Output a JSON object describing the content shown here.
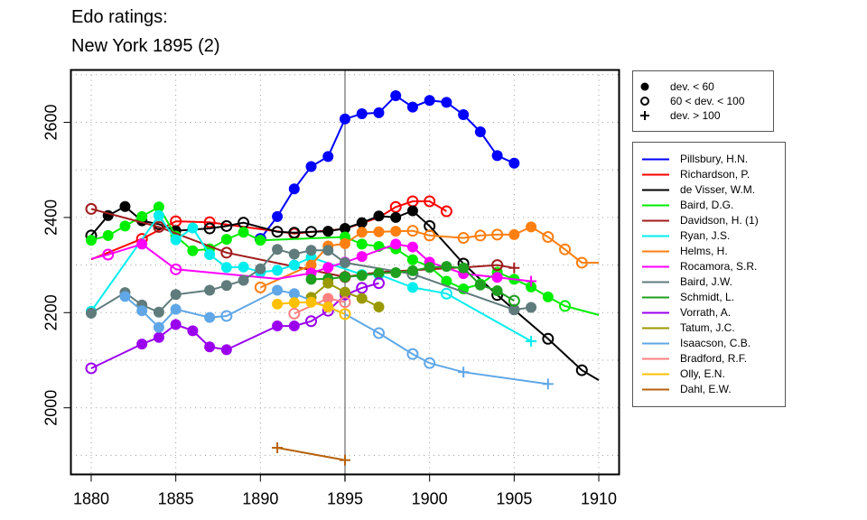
{
  "chart_data": {
    "type": "line",
    "title": "Edo ratings:",
    "subtitle": "New York 1895 (2)",
    "xlabel": "",
    "ylabel": "",
    "xlim": [
      1878.8,
      1911.2
    ],
    "ylim": [
      1860,
      2710
    ],
    "x_ticks": [
      1880,
      1885,
      1890,
      1895,
      1900,
      1905,
      1910
    ],
    "y_ticks": [
      2000,
      2200,
      2400,
      2600
    ],
    "grid": true,
    "event_year": 1895,
    "legend_position": "right",
    "marker_legend": [
      {
        "marker": "filled",
        "label": "dev. < 60"
      },
      {
        "marker": "open",
        "label": "60 < dev. < 100"
      },
      {
        "marker": "plus",
        "label": "dev. > 100"
      }
    ],
    "series": [
      {
        "name": "Pillsbury, H.N.",
        "color": "#0000ff",
        "points": [
          [
            1890,
            2355,
            "o"
          ],
          [
            1891,
            2402,
            "f"
          ],
          [
            1892,
            2460,
            "f"
          ],
          [
            1893,
            2507,
            "f"
          ],
          [
            1894,
            2528,
            "f"
          ],
          [
            1895,
            2607,
            "f"
          ],
          [
            1896,
            2618,
            "f"
          ],
          [
            1897,
            2620,
            "f"
          ],
          [
            1898,
            2656,
            "f"
          ],
          [
            1899,
            2632,
            "f"
          ],
          [
            1900,
            2646,
            "f"
          ],
          [
            1901,
            2642,
            "f"
          ],
          [
            1902,
            2616,
            "f"
          ],
          [
            1903,
            2580,
            "f"
          ],
          [
            1904,
            2530,
            "f"
          ],
          [
            1905,
            2514,
            "f"
          ]
        ]
      },
      {
        "name": "Richardson, P.",
        "color": "#ff0000",
        "points": [
          [
            1880,
            2312,
            "n"
          ],
          [
            1883,
            2355,
            "o"
          ],
          [
            1885,
            2392,
            "o"
          ],
          [
            1887,
            2390,
            "o"
          ],
          [
            1892,
            2366,
            "o"
          ],
          [
            1895,
            2376,
            "n"
          ],
          [
            1897,
            2400,
            "n"
          ],
          [
            1898,
            2422,
            "o"
          ],
          [
            1899,
            2434,
            "o"
          ],
          [
            1900,
            2434,
            "o"
          ],
          [
            1901,
            2413,
            "o"
          ]
        ]
      },
      {
        "name": "de Visser, W.M.",
        "color": "#000000",
        "points": [
          [
            1880,
            2362,
            "o"
          ],
          [
            1881,
            2404,
            "f"
          ],
          [
            1882,
            2423,
            "f"
          ],
          [
            1883,
            2393,
            "f"
          ],
          [
            1884,
            2386,
            "o"
          ],
          [
            1885,
            2372,
            "f"
          ],
          [
            1887,
            2377,
            "o"
          ],
          [
            1888,
            2382,
            "o"
          ],
          [
            1889,
            2389,
            "o"
          ],
          [
            1891,
            2370,
            "o"
          ],
          [
            1892,
            2368,
            "o"
          ],
          [
            1893,
            2370,
            "o"
          ],
          [
            1894,
            2371,
            "f"
          ],
          [
            1895,
            2377,
            "f"
          ],
          [
            1896,
            2389,
            "f"
          ],
          [
            1897,
            2403,
            "f"
          ],
          [
            1898,
            2400,
            "f"
          ],
          [
            1899,
            2414,
            "f"
          ],
          [
            1900,
            2382,
            "o"
          ],
          [
            1902,
            2303,
            "o"
          ],
          [
            1904,
            2237,
            "o"
          ],
          [
            1905,
            2206,
            "f"
          ],
          [
            1907,
            2145,
            "o"
          ],
          [
            1909,
            2079,
            "o"
          ],
          [
            1910,
            2058,
            "n"
          ]
        ]
      },
      {
        "name": "Baird, D.G.",
        "color": "#00ee00",
        "points": [
          [
            1880,
            2352,
            "f"
          ],
          [
            1881,
            2362,
            "f"
          ],
          [
            1882,
            2382,
            "f"
          ],
          [
            1883,
            2402,
            "f"
          ],
          [
            1884,
            2422,
            "f"
          ],
          [
            1885,
            2361,
            "f"
          ],
          [
            1886,
            2330,
            "f"
          ],
          [
            1887,
            2334,
            "f"
          ],
          [
            1888,
            2354,
            "f"
          ],
          [
            1889,
            2369,
            "f"
          ],
          [
            1890,
            2352,
            "f"
          ],
          [
            1895,
            2359,
            "f"
          ],
          [
            1896,
            2344,
            "f"
          ],
          [
            1897,
            2339,
            "f"
          ],
          [
            1898,
            2334,
            "f"
          ],
          [
            1899,
            2311,
            "f"
          ],
          [
            1900,
            2297,
            "f"
          ],
          [
            1901,
            2266,
            "f"
          ],
          [
            1902,
            2250,
            "f"
          ],
          [
            1903,
            2260,
            "f"
          ],
          [
            1904,
            2285,
            "f"
          ],
          [
            1905,
            2270,
            "f"
          ],
          [
            1906,
            2254,
            "f"
          ],
          [
            1907,
            2233,
            "f"
          ],
          [
            1908,
            2214,
            "o"
          ],
          [
            1910,
            2195,
            "n"
          ]
        ]
      },
      {
        "name": "Davidson, H. (1)",
        "color": "#a01c1c",
        "points": [
          [
            1880,
            2418,
            "o"
          ],
          [
            1884,
            2380,
            "o"
          ],
          [
            1888,
            2326,
            "o"
          ],
          [
            1895,
            2275,
            "o"
          ],
          [
            1897,
            2285,
            "n"
          ],
          [
            1902,
            2295,
            "n"
          ],
          [
            1904,
            2300,
            "o"
          ],
          [
            1905,
            2294,
            "p"
          ]
        ]
      },
      {
        "name": "Ryan, J.S.",
        "color": "#00eeee",
        "points": [
          [
            1880,
            2203,
            "f"
          ],
          [
            1884,
            2404,
            "f"
          ],
          [
            1885,
            2353,
            "f"
          ],
          [
            1886,
            2378,
            "f"
          ],
          [
            1887,
            2322,
            "f"
          ],
          [
            1888,
            2295,
            "f"
          ],
          [
            1889,
            2296,
            "f"
          ],
          [
            1890,
            2285,
            "f"
          ],
          [
            1891,
            2289,
            "f"
          ],
          [
            1892,
            2300,
            "f"
          ],
          [
            1893,
            2316,
            "f"
          ],
          [
            1896,
            2280,
            "f"
          ],
          [
            1897,
            2280,
            "f"
          ],
          [
            1899,
            2253,
            "f"
          ],
          [
            1901,
            2240,
            "o"
          ],
          [
            1906,
            2140,
            "p"
          ]
        ]
      },
      {
        "name": "Helms, H.",
        "color": "#ff7f11",
        "points": [
          [
            1890,
            2253,
            "o"
          ],
          [
            1893,
            2300,
            "f"
          ],
          [
            1894,
            2340,
            "f"
          ],
          [
            1895,
            2345,
            "f"
          ],
          [
            1896,
            2369,
            "f"
          ],
          [
            1897,
            2370,
            "f"
          ],
          [
            1898,
            2371,
            "f"
          ],
          [
            1899,
            2372,
            "o"
          ],
          [
            1900,
            2362,
            "o"
          ],
          [
            1902,
            2357,
            "o"
          ],
          [
            1903,
            2362,
            "o"
          ],
          [
            1904,
            2364,
            "o"
          ],
          [
            1905,
            2364,
            "f"
          ],
          [
            1906,
            2380,
            "f"
          ],
          [
            1907,
            2359,
            "o"
          ],
          [
            1908,
            2333,
            "o"
          ],
          [
            1909,
            2305,
            "o"
          ],
          [
            1910,
            2305,
            "n"
          ]
        ]
      },
      {
        "name": "Rocamora, S.R.",
        "color": "#ff00ff",
        "points": [
          [
            1880,
            2313,
            "n"
          ],
          [
            1881,
            2322,
            "o"
          ],
          [
            1883,
            2344,
            "f"
          ],
          [
            1885,
            2291,
            "o"
          ],
          [
            1891,
            2271,
            "n"
          ],
          [
            1893,
            2283,
            "f"
          ],
          [
            1894,
            2295,
            "f"
          ],
          [
            1895,
            2306,
            "f"
          ],
          [
            1896,
            2318,
            "f"
          ],
          [
            1898,
            2344,
            "f"
          ],
          [
            1899,
            2338,
            "f"
          ],
          [
            1900,
            2306,
            "f"
          ],
          [
            1902,
            2282,
            "f"
          ],
          [
            1904,
            2274,
            "f"
          ],
          [
            1906,
            2266,
            "p"
          ]
        ]
      },
      {
        "name": "Baird, J.W.",
        "color": "#607b7b",
        "points": [
          [
            1880,
            2199,
            "f"
          ],
          [
            1882,
            2242,
            "f"
          ],
          [
            1883,
            2216,
            "f"
          ],
          [
            1884,
            2201,
            "f"
          ],
          [
            1885,
            2238,
            "f"
          ],
          [
            1887,
            2247,
            "f"
          ],
          [
            1888,
            2257,
            "f"
          ],
          [
            1889,
            2268,
            "f"
          ],
          [
            1890,
            2292,
            "f"
          ],
          [
            1891,
            2333,
            "f"
          ],
          [
            1892,
            2323,
            "f"
          ],
          [
            1893,
            2331,
            "f"
          ],
          [
            1894,
            2331,
            "f"
          ],
          [
            1895,
            2305,
            "f"
          ],
          [
            1899,
            2281,
            "o"
          ],
          [
            1905,
            2206,
            "f"
          ],
          [
            1906,
            2211,
            "f"
          ]
        ]
      },
      {
        "name": "Schmidt, L.",
        "color": "#1ea01e",
        "points": [
          [
            1893,
            2270,
            "f"
          ],
          [
            1894,
            2271,
            "f"
          ],
          [
            1895,
            2275,
            "f"
          ],
          [
            1896,
            2278,
            "f"
          ],
          [
            1897,
            2283,
            "f"
          ],
          [
            1898,
            2284,
            "f"
          ],
          [
            1899,
            2288,
            "f"
          ],
          [
            1900,
            2295,
            "f"
          ],
          [
            1901,
            2297,
            "f"
          ],
          [
            1902,
            2294,
            "f"
          ],
          [
            1903,
            2258,
            "f"
          ],
          [
            1904,
            2246,
            "f"
          ],
          [
            1905,
            2225,
            "o"
          ]
        ]
      },
      {
        "name": "Vorrath, A.",
        "color": "#9b00ee",
        "points": [
          [
            1880,
            2083,
            "o"
          ],
          [
            1883,
            2134,
            "f"
          ],
          [
            1884,
            2148,
            "f"
          ],
          [
            1885,
            2175,
            "f"
          ],
          [
            1886,
            2162,
            "f"
          ],
          [
            1887,
            2128,
            "f"
          ],
          [
            1888,
            2122,
            "f"
          ],
          [
            1891,
            2172,
            "f"
          ],
          [
            1892,
            2172,
            "f"
          ],
          [
            1893,
            2182,
            "o"
          ],
          [
            1894,
            2204,
            "o"
          ],
          [
            1895,
            2237,
            "f"
          ],
          [
            1896,
            2252,
            "o"
          ],
          [
            1897,
            2262,
            "o"
          ]
        ]
      },
      {
        "name": "Tatum, J.C.",
        "color": "#999900",
        "points": [
          [
            1893,
            2232,
            "f"
          ],
          [
            1894,
            2262,
            "f"
          ],
          [
            1895,
            2243,
            "f"
          ],
          [
            1896,
            2230,
            "f"
          ],
          [
            1897,
            2212,
            "f"
          ]
        ]
      },
      {
        "name": "Isaacson, C.B.",
        "color": "#5fa7e7",
        "points": [
          [
            1882,
            2234,
            "f"
          ],
          [
            1883,
            2204,
            "f"
          ],
          [
            1884,
            2169,
            "f"
          ],
          [
            1885,
            2207,
            "f"
          ],
          [
            1887,
            2190,
            "f"
          ],
          [
            1888,
            2193,
            "o"
          ],
          [
            1891,
            2247,
            "f"
          ],
          [
            1892,
            2240,
            "f"
          ],
          [
            1895,
            2197,
            "n"
          ],
          [
            1897,
            2157,
            "o"
          ],
          [
            1899,
            2113,
            "o"
          ],
          [
            1900,
            2094,
            "o"
          ],
          [
            1902,
            2075,
            "p"
          ],
          [
            1907,
            2050,
            "p"
          ]
        ]
      },
      {
        "name": "Bradford, R.F.",
        "color": "#ff8080",
        "points": [
          [
            1892,
            2198,
            "o"
          ],
          [
            1894,
            2230,
            "f"
          ],
          [
            1895,
            2222,
            "o"
          ]
        ]
      },
      {
        "name": "Olly, E.N.",
        "color": "#ffc000",
        "points": [
          [
            1891,
            2218,
            "f"
          ],
          [
            1892,
            2221,
            "f"
          ],
          [
            1893,
            2222,
            "f"
          ],
          [
            1894,
            2212,
            "f"
          ],
          [
            1895,
            2197,
            "o"
          ]
        ]
      },
      {
        "name": "Dahl, E.W.",
        "color": "#b8620c",
        "points": [
          [
            1891,
            1916,
            "p"
          ],
          [
            1895,
            1890,
            "p"
          ]
        ]
      }
    ]
  }
}
